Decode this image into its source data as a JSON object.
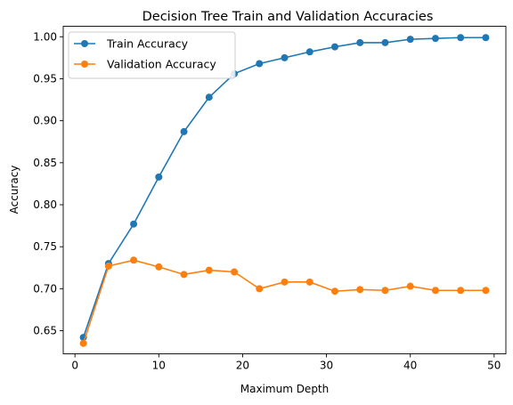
{
  "chart_data": {
    "type": "line",
    "title": "Decision Tree Train and Validation Accuracies",
    "xlabel": "Maximum Depth",
    "ylabel": "Accuracy",
    "xlim": [
      -1.4,
      51.4
    ],
    "ylim": [
      0.6225,
      1.0125
    ],
    "x_ticks": [
      0,
      10,
      20,
      30,
      40,
      50
    ],
    "y_ticks": [
      0.65,
      0.7,
      0.75,
      0.8,
      0.85,
      0.9,
      0.95,
      1.0
    ],
    "y_tick_labels": [
      "0.65",
      "0.70",
      "0.75",
      "0.80",
      "0.85",
      "0.90",
      "0.95",
      "1.00"
    ],
    "grid": false,
    "legend_position": "upper-left",
    "x": [
      1,
      4,
      7,
      10,
      13,
      16,
      19,
      22,
      25,
      28,
      31,
      34,
      37,
      40,
      43,
      46,
      49
    ],
    "series": [
      {
        "name": "Train Accuracy",
        "color": "#1f77b4",
        "values": [
          0.642,
          0.73,
          0.777,
          0.833,
          0.887,
          0.928,
          0.956,
          0.968,
          0.975,
          0.982,
          0.988,
          0.993,
          0.993,
          0.997,
          0.998,
          0.999,
          0.999
        ]
      },
      {
        "name": "Validation Accuracy",
        "color": "#ff7f0e",
        "values": [
          0.635,
          0.727,
          0.734,
          0.726,
          0.717,
          0.722,
          0.72,
          0.7,
          0.708,
          0.708,
          0.697,
          0.699,
          0.698,
          0.703,
          0.698,
          0.698,
          0.698
        ]
      }
    ]
  }
}
